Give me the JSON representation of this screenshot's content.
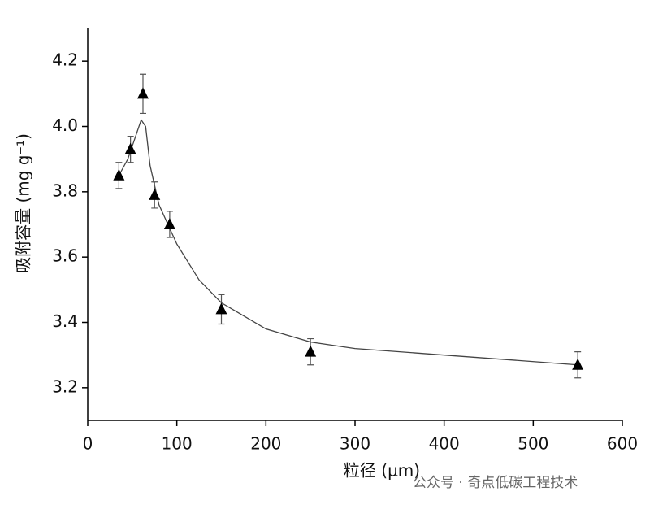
{
  "chart_data": {
    "type": "scatter",
    "x_label": "粒径 (μm)",
    "y_label": "吸附容量 (mg g⁻¹)",
    "watermark": "公众号 · 奇点低碳工程技术",
    "xlim": [
      0,
      600
    ],
    "xticks": [
      0,
      100,
      200,
      300,
      400,
      500,
      600
    ],
    "ylim": [
      3.1,
      4.3
    ],
    "yticks": [
      3.2,
      3.4,
      3.6,
      3.8,
      {
        "value": 4,
        "label": "4.0"
      },
      4.2
    ],
    "series": [
      {
        "color": "#000000",
        "x": [
          35,
          48,
          62,
          75,
          92,
          150,
          250,
          550
        ],
        "values": [
          3.85,
          3.93,
          4.1,
          3.79,
          3.7,
          3.44,
          3.31,
          3.27
        ],
        "errors": [
          0.04,
          0.04,
          0.06,
          0.04,
          0.04,
          0.045,
          0.04,
          0.04
        ]
      }
    ],
    "fit_line": {
      "color": "#444444",
      "x": [
        35,
        45,
        55,
        60,
        65,
        70,
        80,
        100,
        125,
        150,
        200,
        250,
        300,
        400,
        550
      ],
      "values": [
        3.85,
        3.9,
        3.98,
        4.02,
        4.0,
        3.88,
        3.76,
        3.64,
        3.53,
        3.46,
        3.38,
        3.34,
        3.32,
        3.3,
        3.27
      ]
    }
  }
}
